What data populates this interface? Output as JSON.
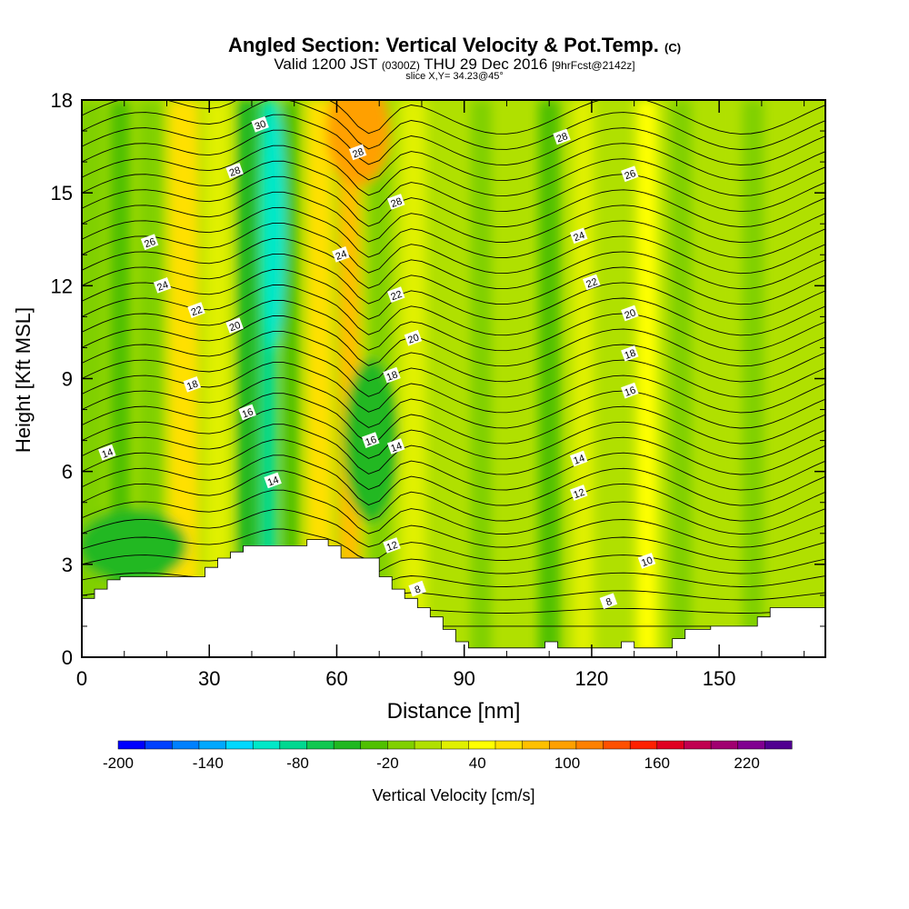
{
  "header": {
    "title": "Angled Section: Vertical Velocity & Pot.Temp.",
    "title_unit": "(C)",
    "valid_prefix": "Valid 1200 JST",
    "valid_utc": "(0300Z)",
    "valid_date": "THU 29 Dec 2016",
    "forecast": "[9hrFcst@2142z]",
    "slice": "slice X,Y= 34.23@45°"
  },
  "chart_data": {
    "type": "heatmap",
    "xlabel": "Distance [nm]",
    "ylabel": "Height [Kft MSL]",
    "xlim": [
      0,
      175
    ],
    "ylim": [
      0,
      18
    ],
    "xticks": [
      0,
      30,
      60,
      90,
      120,
      150
    ],
    "yticks": [
      0,
      3,
      6,
      9,
      12,
      15,
      18
    ],
    "colorbar": {
      "label": "Vertical Velocity [cm/s]",
      "min": -200,
      "max": 250,
      "step": 20,
      "tick_labels": [
        "-200",
        "-140",
        "-80",
        "-20",
        "40",
        "100",
        "160",
        "220"
      ],
      "tick_values": [
        -200,
        -140,
        -80,
        -20,
        40,
        100,
        160,
        220
      ],
      "colors": [
        "#0000ff",
        "#0040ff",
        "#0080ff",
        "#00a8ff",
        "#00d8ff",
        "#00e8c8",
        "#00d890",
        "#10c850",
        "#20b820",
        "#50c000",
        "#80d000",
        "#b0e000",
        "#e0f000",
        "#ffff00",
        "#ffe000",
        "#ffc000",
        "#ffa000",
        "#ff8000",
        "#ff5000",
        "#ff2000",
        "#e00020",
        "#c00050",
        "#a00070",
        "#800090",
        "#500090"
      ]
    },
    "terrain_profile": {
      "x": [
        0,
        3,
        3,
        6,
        6,
        9,
        9,
        29,
        29,
        32,
        32,
        35,
        35,
        38,
        38,
        41,
        41,
        53,
        53,
        58,
        58,
        61,
        61,
        70,
        70,
        73,
        73,
        76,
        76,
        79,
        79,
        82,
        82,
        85,
        85,
        88,
        88,
        91,
        91,
        109,
        109,
        112,
        112,
        115,
        115,
        118,
        118,
        127,
        127,
        130,
        130,
        133,
        133,
        136,
        136,
        139,
        139,
        142,
        142,
        145,
        145,
        148,
        148,
        159,
        159,
        162,
        162,
        175
      ],
      "y": [
        1.9,
        1.9,
        2.2,
        2.2,
        2.5,
        2.5,
        2.6,
        2.6,
        2.9,
        2.9,
        3.2,
        3.2,
        3.4,
        3.4,
        3.6,
        3.6,
        3.6,
        3.6,
        3.8,
        3.8,
        3.6,
        3.6,
        3.2,
        3.2,
        2.6,
        2.6,
        2.2,
        2.2,
        1.9,
        1.9,
        1.6,
        1.6,
        1.3,
        1.3,
        0.9,
        0.9,
        0.5,
        0.5,
        0.3,
        0.3,
        0.5,
        0.5,
        0.3,
        0.3,
        0.3,
        0.3,
        0.3,
        0.3,
        0.5,
        0.5,
        0.3,
        0.3,
        0.3,
        0.3,
        0.3,
        0.3,
        0.6,
        0.6,
        0.9,
        0.9,
        0.9,
        0.9,
        1.0,
        1.0,
        1.3,
        1.3,
        1.6,
        1.6
      ]
    },
    "contour_labels": [
      {
        "x": 42,
        "y": 17.2,
        "text": "30"
      },
      {
        "x": 36,
        "y": 15.7,
        "text": "28"
      },
      {
        "x": 65,
        "y": 16.3,
        "text": "28"
      },
      {
        "x": 74,
        "y": 14.7,
        "text": "28"
      },
      {
        "x": 113,
        "y": 16.8,
        "text": "28"
      },
      {
        "x": 129,
        "y": 15.6,
        "text": "26"
      },
      {
        "x": 16,
        "y": 13.4,
        "text": "26"
      },
      {
        "x": 61,
        "y": 13.0,
        "text": "24"
      },
      {
        "x": 117,
        "y": 13.6,
        "text": "24"
      },
      {
        "x": 19,
        "y": 12.0,
        "text": "24"
      },
      {
        "x": 27,
        "y": 11.2,
        "text": "22"
      },
      {
        "x": 74,
        "y": 11.7,
        "text": "22"
      },
      {
        "x": 120,
        "y": 12.1,
        "text": "22"
      },
      {
        "x": 36,
        "y": 10.7,
        "text": "20"
      },
      {
        "x": 78,
        "y": 10.3,
        "text": "20"
      },
      {
        "x": 129,
        "y": 11.1,
        "text": "20"
      },
      {
        "x": 129,
        "y": 9.8,
        "text": "18"
      },
      {
        "x": 26,
        "y": 8.8,
        "text": "18"
      },
      {
        "x": 73,
        "y": 9.1,
        "text": "18"
      },
      {
        "x": 39,
        "y": 7.9,
        "text": "16"
      },
      {
        "x": 68,
        "y": 7.0,
        "text": "16"
      },
      {
        "x": 129,
        "y": 8.6,
        "text": "16"
      },
      {
        "x": 6,
        "y": 6.6,
        "text": "14"
      },
      {
        "x": 45,
        "y": 5.7,
        "text": "14"
      },
      {
        "x": 74,
        "y": 6.8,
        "text": "14"
      },
      {
        "x": 117,
        "y": 6.4,
        "text": "14"
      },
      {
        "x": 117,
        "y": 5.3,
        "text": "12"
      },
      {
        "x": 73,
        "y": 3.6,
        "text": "12"
      },
      {
        "x": 133,
        "y": 3.1,
        "text": "10"
      },
      {
        "x": 79,
        "y": 2.2,
        "text": "8"
      },
      {
        "x": 124,
        "y": 1.8,
        "text": "8"
      }
    ]
  }
}
